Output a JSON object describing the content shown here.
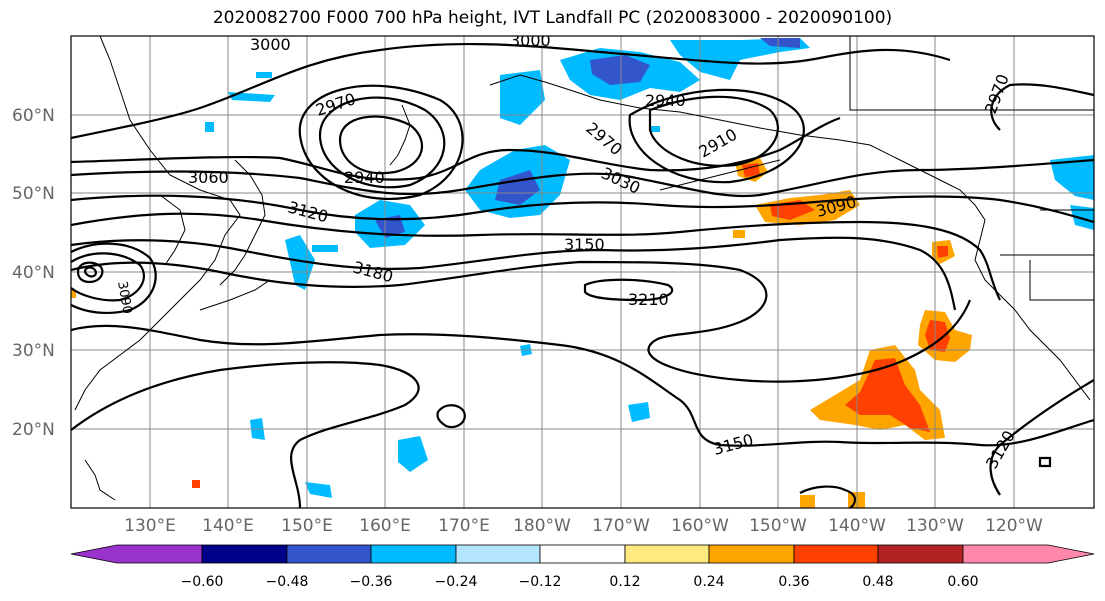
{
  "title": "2020082700 F000 700 hPa height, IVT Landfall PC (2020083000 - 2020090100)",
  "map": {
    "lon_labels": [
      "130°E",
      "140°E",
      "150°E",
      "160°E",
      "170°E",
      "180°W",
      "170°W",
      "160°W",
      "150°W",
      "140°W",
      "130°W",
      "120°W"
    ],
    "lat_labels": [
      "60°N",
      "50°N",
      "40°N",
      "30°N",
      "20°N"
    ],
    "contour_labels": [
      "3000",
      "3000",
      "2970",
      "2940",
      "2940",
      "2970",
      "2910",
      "3060",
      "3030",
      "3120",
      "3090",
      "3150",
      "3180",
      "3210",
      "3150",
      "3120",
      "2970",
      "3090"
    ]
  },
  "colorbar": {
    "ticks": [
      "−0.60",
      "−0.48",
      "−0.36",
      "−0.24",
      "−0.12",
      "0.12",
      "0.24",
      "0.36",
      "0.48",
      "0.60"
    ],
    "colors": [
      "#9933cc",
      "#000088",
      "#3355cc",
      "#00bbff",
      "#b3e5ff",
      "#ffffff",
      "#ffea80",
      "#ffa500",
      "#ff4000",
      "#b22222",
      "#ff88aa"
    ]
  }
}
